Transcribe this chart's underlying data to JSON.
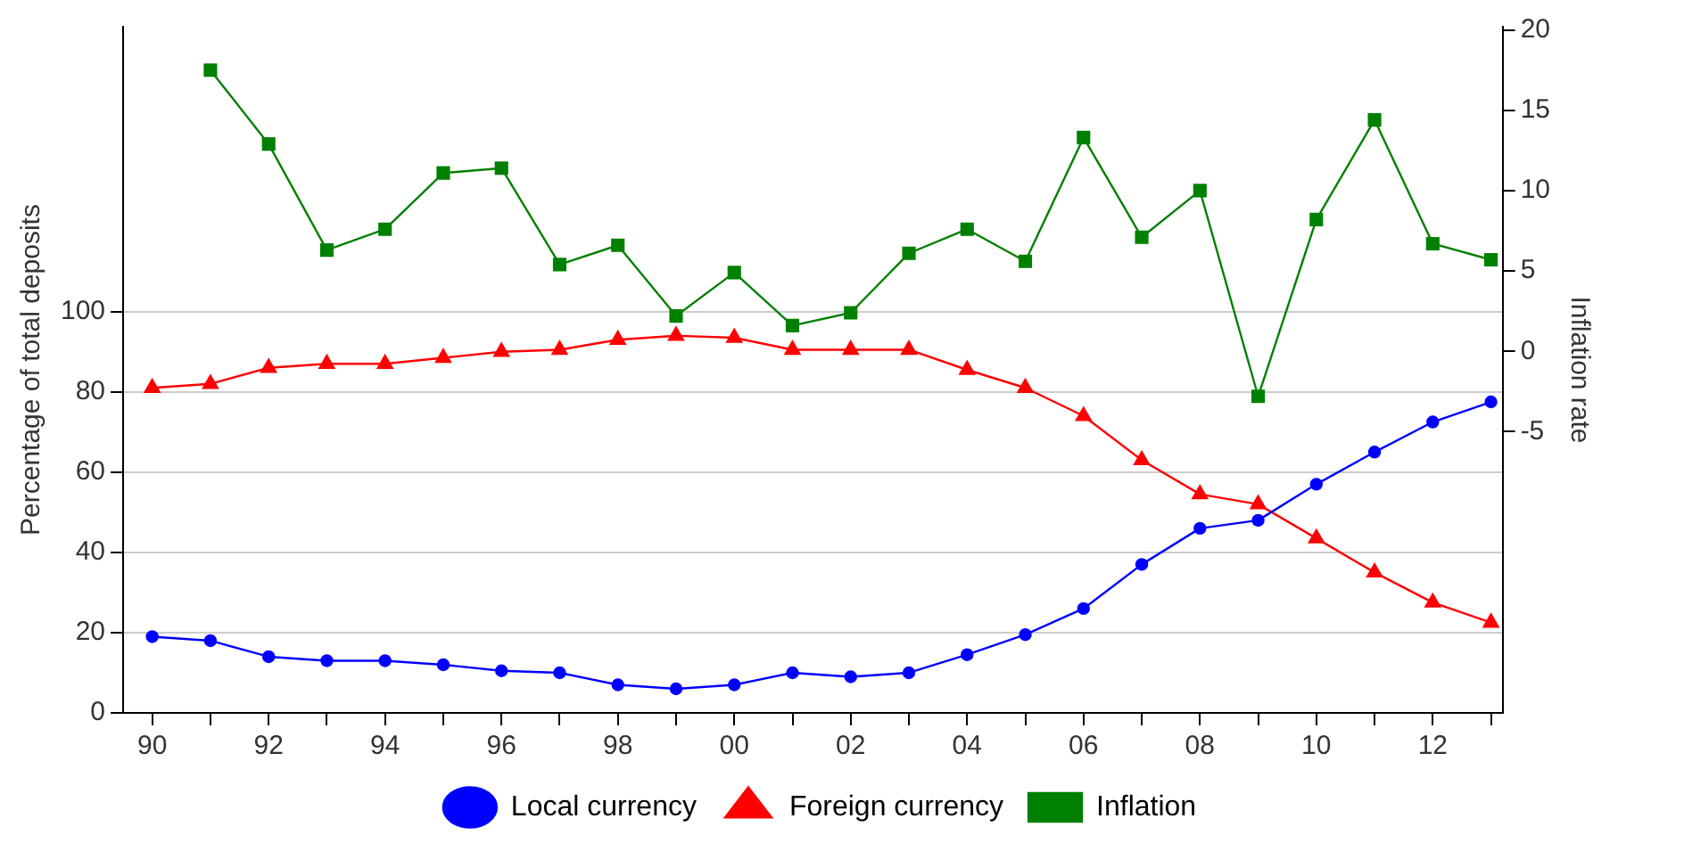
{
  "chart_data": {
    "type": "line",
    "ylabel": "Percentage of total deposits",
    "y2label": "Inflation rate",
    "x": [
      1990,
      1991,
      1992,
      1993,
      1994,
      1995,
      1996,
      1997,
      1998,
      1999,
      2000,
      2001,
      2002,
      2003,
      2004,
      2005,
      2006,
      2007,
      2008,
      2009,
      2010,
      2011,
      2012,
      2013
    ],
    "xlim": [
      1989.5,
      2013.2
    ],
    "xticks": [
      {
        "value": 1990,
        "label": "90"
      },
      {
        "value": 1991,
        "label": null
      },
      {
        "value": 1992,
        "label": "92"
      },
      {
        "value": 1993,
        "label": null
      },
      {
        "value": 1994,
        "label": "94"
      },
      {
        "value": 1995,
        "label": null
      },
      {
        "value": 1996,
        "label": "96"
      },
      {
        "value": 1997,
        "label": null
      },
      {
        "value": 1998,
        "label": "98"
      },
      {
        "value": 1999,
        "label": null
      },
      {
        "value": 2000,
        "label": "00"
      },
      {
        "value": 2001,
        "label": null
      },
      {
        "value": 2002,
        "label": "02"
      },
      {
        "value": 2003,
        "label": null
      },
      {
        "value": 2004,
        "label": "04"
      },
      {
        "value": 2005,
        "label": null
      },
      {
        "value": 2006,
        "label": "06"
      },
      {
        "value": 2007,
        "label": null
      },
      {
        "value": 2008,
        "label": "08"
      },
      {
        "value": 2009,
        "label": null
      },
      {
        "value": 2010,
        "label": "10"
      },
      {
        "value": 2011,
        "label": null
      },
      {
        "value": 2012,
        "label": "12"
      },
      {
        "value": 2013,
        "label": null
      }
    ],
    "ylim": [
      0,
      171
    ],
    "yticks": [
      0,
      20,
      40,
      60,
      80,
      100
    ],
    "y2lim": [
      -22.5,
      20.2
    ],
    "y2ticks": [
      -5,
      0,
      5,
      10,
      15,
      20
    ],
    "grid": "y",
    "legend": "bottom",
    "line_style": "solid",
    "series": [
      {
        "name": "Local currency",
        "color": "#0000ff",
        "marker": "circle",
        "values": [
          19,
          18,
          14,
          13,
          13,
          12,
          10.5,
          10,
          7,
          6,
          7,
          10,
          9,
          10,
          14.5,
          19.5,
          26,
          37,
          46,
          48,
          57,
          65,
          72.5,
          77.5
        ]
      },
      {
        "name": "Foreign currency",
        "color": "#ff0000",
        "marker": "triangle",
        "values": [
          81,
          82,
          86,
          87,
          87,
          88.5,
          90,
          90.5,
          93,
          94,
          93.5,
          90.5,
          90.5,
          90.5,
          85.5,
          81,
          74,
          63,
          54.5,
          52,
          43.5,
          35,
          27.5,
          22.5
        ]
      },
      {
        "name": "Inflation",
        "color": "#008000",
        "marker": "square",
        "axis": "y2",
        "values": [
          null,
          17.5,
          12.9,
          6.3,
          7.6,
          11.1,
          11.4,
          5.4,
          6.6,
          2.2,
          4.9,
          1.6,
          2.4,
          6.1,
          7.6,
          5.6,
          13.3,
          7.1,
          10,
          -2.8,
          8.2,
          14.4,
          6.7,
          5.7
        ]
      }
    ]
  }
}
